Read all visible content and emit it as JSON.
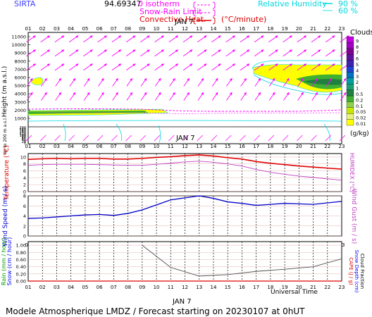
{
  "header": {
    "site": "SIRTA",
    "code": "94.69347",
    "legend": {
      "isotherm": "0 isotherm",
      "snow_rain": "Snow-Rain Limit",
      "convective": "Convective Heat.",
      "convective_unit": "(°C/minute)",
      "rh": "Relative Humidity",
      "rh_90": "90 %",
      "rh_60": "60 %"
    }
  },
  "hours": [
    "01",
    "02",
    "03",
    "04",
    "05",
    "06",
    "07",
    "08",
    "09",
    "10",
    "11",
    "12",
    "13",
    "14",
    "15",
    "16",
    "17",
    "18",
    "19",
    "20",
    "21",
    "22",
    "23"
  ],
  "date_label": "JAN   7",
  "footer": {
    "universal_time": "Universal Time",
    "model": "Modele Atmospherique LMDZ / Forecast starting on 20230107 at 0hUT"
  },
  "colors": {
    "magenta": "#ff00ff",
    "cyan": "#00d8e0",
    "red": "#e00000",
    "blue": "#0000c8",
    "pink": "#c040c0",
    "cloud_yellow": "#ffff00",
    "cloud_green": "#40b030",
    "cloud_dgreen": "#208040"
  },
  "chart_data": [
    {
      "type": "area",
      "name": "clouds_height",
      "ylabel": "Height  (m a.s.l.)",
      "ylabel2": "Up to 200 m a.s.l.",
      "y_ticks_upper": [
        1000,
        2000,
        3000,
        4000,
        5000,
        6000,
        7000,
        8000,
        9000,
        10000,
        11000
      ],
      "y_ticks_lower": [
        0,
        20,
        40,
        60,
        80,
        100,
        120,
        140,
        160,
        180,
        200
      ],
      "colorbar_title": "Clouds",
      "colorbar_unit": "(g/kg)",
      "colorbar_levels": [
        "0.01",
        "0.02",
        "0.05",
        "0.1",
        "0.2",
        "0.5",
        "1",
        "2",
        "3",
        "4",
        "5",
        "6",
        "7",
        "8",
        "9"
      ],
      "colorbar_colors": [
        "#ffff00",
        "#e8f080",
        "#c8e800",
        "#90d048",
        "#40b030",
        "#208040",
        "#1a9f7a",
        "#00a0a0",
        "#0070c0",
        "#2040d0",
        "#4020b0",
        "#6010a0",
        "#800090",
        "#a000c0",
        "#c000e0"
      ]
    },
    {
      "type": "line",
      "name": "temperature",
      "ylabel": "Temperature (°C)",
      "ylabel_right": "HUMIDEX (°C)",
      "y_ticks": [
        0,
        2,
        4,
        6,
        8,
        10
      ],
      "ylim": [
        0,
        11
      ],
      "series": [
        {
          "name": "Temperature",
          "color": "#e00000",
          "values": [
            9.3,
            9.5,
            9.6,
            9.5,
            9.6,
            9.6,
            9.4,
            9.4,
            9.6,
            9.9,
            10.1,
            10.4,
            10.6,
            10.3,
            9.8,
            9.4,
            8.7,
            8.2,
            7.8,
            7.4,
            7.1,
            6.8,
            6.5
          ]
        },
        {
          "name": "Humidex",
          "color": "#c040c0",
          "values": [
            7.6,
            7.8,
            7.9,
            7.9,
            7.9,
            7.8,
            7.7,
            7.6,
            7.6,
            7.9,
            8.2,
            8.6,
            8.8,
            8.5,
            8.0,
            7.4,
            6.4,
            5.6,
            5.0,
            4.5,
            4.1,
            3.7,
            3.3
          ]
        }
      ]
    },
    {
      "type": "line",
      "name": "wind",
      "ylabel": "Wind Speed (m / s)",
      "ylabel_right": "Wind Gust (m / s)",
      "y_ticks": [
        0,
        2,
        4,
        6,
        8
      ],
      "ylim": [
        0,
        8
      ],
      "series": [
        {
          "name": "Wind Speed",
          "color": "#0000c8",
          "values": [
            3.5,
            3.6,
            3.8,
            4.0,
            4.2,
            4.3,
            4.1,
            4.5,
            5.2,
            6.2,
            7.2,
            7.6,
            8.0,
            7.5,
            6.8,
            6.5,
            6.1,
            6.3,
            6.5,
            6.4,
            6.3,
            6.6,
            6.9
          ]
        }
      ]
    },
    {
      "type": "line",
      "name": "precip",
      "ylabel": "Rain (mm / hour)",
      "ylabel2": "Snow (cm / hour)",
      "ylabel_right": "CAPE (J / g)",
      "ylabel_right2": "Snow Depth (cm)",
      "ylabel_right3": "Cloud Fraction",
      "y_ticks": [
        "0.00",
        "0.20",
        "0.40",
        "0.60",
        "0.80",
        "1.00"
      ],
      "ylim": [
        0,
        1.1
      ],
      "series": [
        {
          "name": "Cloud Fraction",
          "color": "#505050",
          "x": [
            9,
            11,
            13,
            15,
            17,
            19,
            21,
            23
          ],
          "values": [
            1.0,
            0.38,
            0.14,
            0.18,
            0.27,
            0.33,
            0.4,
            0.62
          ]
        },
        {
          "name": "Rain",
          "color": "#e00000",
          "values": [
            0,
            0,
            0,
            0,
            0,
            0,
            0,
            0,
            0,
            0,
            0,
            0,
            0,
            0,
            0,
            0,
            0,
            0,
            0,
            0,
            0,
            0,
            0
          ]
        }
      ]
    }
  ]
}
